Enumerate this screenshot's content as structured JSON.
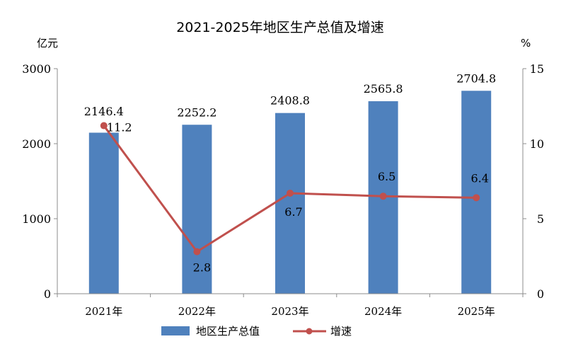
{
  "chart_data": {
    "type": "bar",
    "title": "2021-2025年地区生产总值及增速",
    "categories": [
      "2021年",
      "2022年",
      "2023年",
      "2024年",
      "2025年"
    ],
    "left_axis": {
      "unit": "亿元",
      "ylim": [
        0,
        3000
      ],
      "ticks": [
        "0",
        "1000",
        "2000",
        "3000"
      ]
    },
    "right_axis": {
      "unit": "%",
      "ylim": [
        0,
        15
      ],
      "ticks": [
        "0",
        "5",
        "10",
        "15"
      ]
    },
    "series": [
      {
        "name": "地区生产总值",
        "type": "bar",
        "axis": "left",
        "color": "#4f81bd",
        "values": [
          2146.4,
          2252.2,
          2408.8,
          2565.8,
          2704.8
        ],
        "labels": [
          "2146.4",
          "2252.2",
          "2408.8",
          "2565.8",
          "2704.8"
        ]
      },
      {
        "name": "增速",
        "type": "line",
        "axis": "right",
        "color": "#c0504d",
        "values": [
          11.2,
          2.8,
          6.7,
          6.5,
          6.4
        ],
        "labels": [
          "11.2",
          "2.8",
          "6.7",
          "6.5",
          "6.4"
        ]
      }
    ],
    "legend": "bottom",
    "grid": false
  }
}
